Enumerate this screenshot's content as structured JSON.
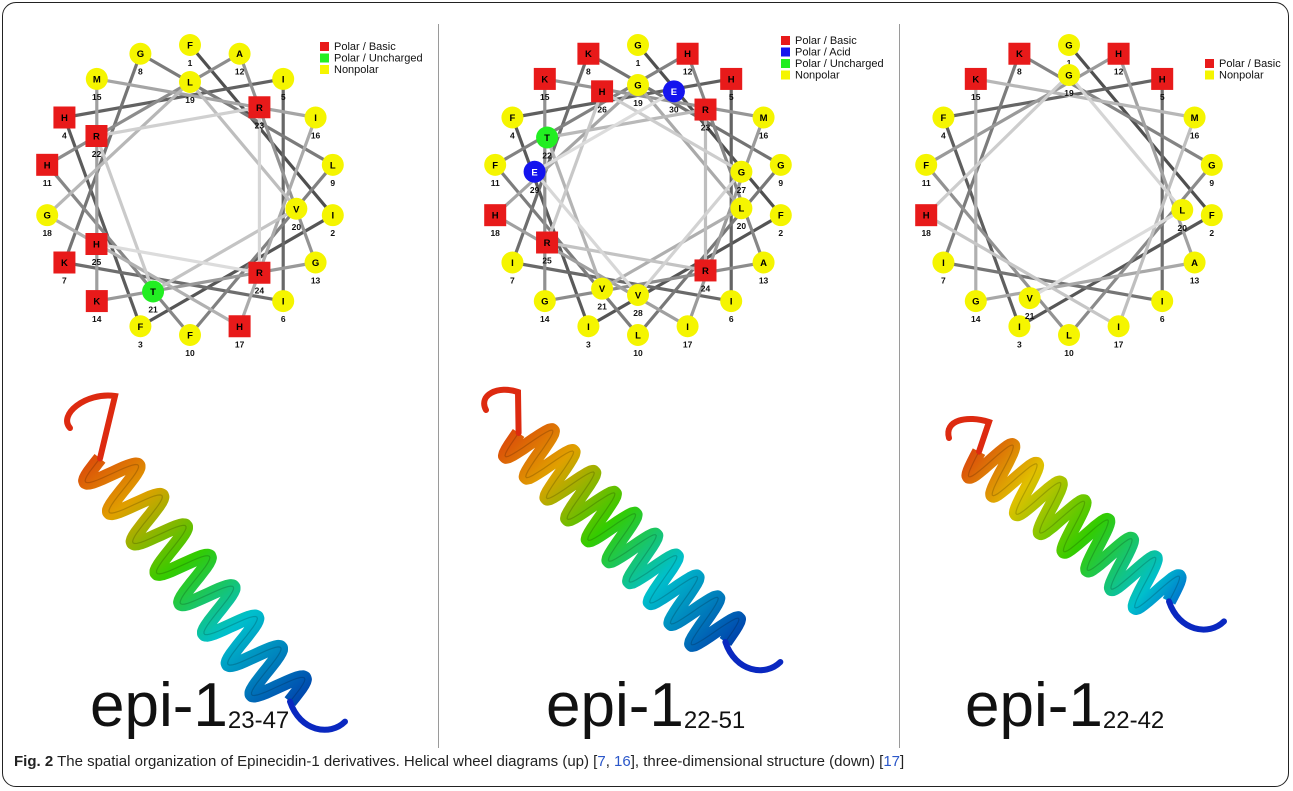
{
  "legend_labels": {
    "basic": "Polar / Basic",
    "acid": "Polar / Acid",
    "uncharged": "Polar / Uncharged",
    "nonpolar": "Nonpolar"
  },
  "colors": {
    "basic": "#e81a1a",
    "acid": "#1414ee",
    "uncharged": "#22ee22",
    "nonpolar": "#f5f500"
  },
  "panels": [
    {
      "id": "epi-1-23-47",
      "label_main": "epi-1",
      "label_sub": "23-47",
      "legend": [
        "basic",
        "uncharged",
        "nonpolar"
      ],
      "residues": [
        {
          "n": 1,
          "aa": "F",
          "type": "nonpolar"
        },
        {
          "n": 2,
          "aa": "I",
          "type": "nonpolar"
        },
        {
          "n": 3,
          "aa": "F",
          "type": "nonpolar"
        },
        {
          "n": 4,
          "aa": "H",
          "type": "basic"
        },
        {
          "n": 5,
          "aa": "I",
          "type": "nonpolar"
        },
        {
          "n": 6,
          "aa": "I",
          "type": "nonpolar"
        },
        {
          "n": 7,
          "aa": "K",
          "type": "basic"
        },
        {
          "n": 8,
          "aa": "G",
          "type": "nonpolar"
        },
        {
          "n": 9,
          "aa": "L",
          "type": "nonpolar"
        },
        {
          "n": 10,
          "aa": "F",
          "type": "nonpolar"
        },
        {
          "n": 11,
          "aa": "H",
          "type": "basic"
        },
        {
          "n": 12,
          "aa": "A",
          "type": "nonpolar"
        },
        {
          "n": 13,
          "aa": "G",
          "type": "nonpolar"
        },
        {
          "n": 14,
          "aa": "K",
          "type": "basic"
        },
        {
          "n": 15,
          "aa": "M",
          "type": "nonpolar"
        },
        {
          "n": 16,
          "aa": "I",
          "type": "nonpolar"
        },
        {
          "n": 17,
          "aa": "H",
          "type": "basic"
        },
        {
          "n": 18,
          "aa": "G",
          "type": "nonpolar"
        },
        {
          "n": 19,
          "aa": "L",
          "type": "nonpolar"
        },
        {
          "n": 20,
          "aa": "V",
          "type": "nonpolar"
        },
        {
          "n": 21,
          "aa": "T",
          "type": "uncharged"
        },
        {
          "n": 22,
          "aa": "R",
          "type": "basic"
        },
        {
          "n": 23,
          "aa": "R",
          "type": "basic"
        },
        {
          "n": 24,
          "aa": "R",
          "type": "basic"
        },
        {
          "n": 25,
          "aa": "H",
          "type": "basic"
        }
      ]
    },
    {
      "id": "epi-1-22-51",
      "label_main": "epi-1",
      "label_sub": "22-51",
      "legend": [
        "basic",
        "acid",
        "uncharged",
        "nonpolar"
      ],
      "residues": [
        {
          "n": 1,
          "aa": "G",
          "type": "nonpolar"
        },
        {
          "n": 2,
          "aa": "F",
          "type": "nonpolar"
        },
        {
          "n": 3,
          "aa": "I",
          "type": "nonpolar"
        },
        {
          "n": 4,
          "aa": "F",
          "type": "nonpolar"
        },
        {
          "n": 5,
          "aa": "H",
          "type": "basic"
        },
        {
          "n": 6,
          "aa": "I",
          "type": "nonpolar"
        },
        {
          "n": 7,
          "aa": "I",
          "type": "nonpolar"
        },
        {
          "n": 8,
          "aa": "K",
          "type": "basic"
        },
        {
          "n": 9,
          "aa": "G",
          "type": "nonpolar"
        },
        {
          "n": 10,
          "aa": "L",
          "type": "nonpolar"
        },
        {
          "n": 11,
          "aa": "F",
          "type": "nonpolar"
        },
        {
          "n": 12,
          "aa": "H",
          "type": "basic"
        },
        {
          "n": 13,
          "aa": "A",
          "type": "nonpolar"
        },
        {
          "n": 14,
          "aa": "G",
          "type": "nonpolar"
        },
        {
          "n": 15,
          "aa": "K",
          "type": "basic"
        },
        {
          "n": 16,
          "aa": "M",
          "type": "nonpolar"
        },
        {
          "n": 17,
          "aa": "I",
          "type": "nonpolar"
        },
        {
          "n": 18,
          "aa": "H",
          "type": "basic"
        },
        {
          "n": 19,
          "aa": "G",
          "type": "nonpolar"
        },
        {
          "n": 20,
          "aa": "L",
          "type": "nonpolar"
        },
        {
          "n": 21,
          "aa": "V",
          "type": "nonpolar"
        },
        {
          "n": 22,
          "aa": "T",
          "type": "uncharged"
        },
        {
          "n": 23,
          "aa": "R",
          "type": "basic"
        },
        {
          "n": 24,
          "aa": "R",
          "type": "basic"
        },
        {
          "n": 25,
          "aa": "R",
          "type": "basic"
        },
        {
          "n": 26,
          "aa": "H",
          "type": "basic"
        },
        {
          "n": 27,
          "aa": "G",
          "type": "nonpolar"
        },
        {
          "n": 28,
          "aa": "V",
          "type": "nonpolar"
        },
        {
          "n": 29,
          "aa": "E",
          "type": "acid"
        },
        {
          "n": 30,
          "aa": "E",
          "type": "acid"
        }
      ]
    },
    {
      "id": "epi-1-22-42",
      "label_main": "epi-1",
      "label_sub": "22-42",
      "legend": [
        "basic",
        "nonpolar"
      ],
      "residues": [
        {
          "n": 1,
          "aa": "G",
          "type": "nonpolar"
        },
        {
          "n": 2,
          "aa": "F",
          "type": "nonpolar"
        },
        {
          "n": 3,
          "aa": "I",
          "type": "nonpolar"
        },
        {
          "n": 4,
          "aa": "F",
          "type": "nonpolar"
        },
        {
          "n": 5,
          "aa": "H",
          "type": "basic"
        },
        {
          "n": 6,
          "aa": "I",
          "type": "nonpolar"
        },
        {
          "n": 7,
          "aa": "I",
          "type": "nonpolar"
        },
        {
          "n": 8,
          "aa": "K",
          "type": "basic"
        },
        {
          "n": 9,
          "aa": "G",
          "type": "nonpolar"
        },
        {
          "n": 10,
          "aa": "L",
          "type": "nonpolar"
        },
        {
          "n": 11,
          "aa": "F",
          "type": "nonpolar"
        },
        {
          "n": 12,
          "aa": "H",
          "type": "basic"
        },
        {
          "n": 13,
          "aa": "A",
          "type": "nonpolar"
        },
        {
          "n": 14,
          "aa": "G",
          "type": "nonpolar"
        },
        {
          "n": 15,
          "aa": "K",
          "type": "basic"
        },
        {
          "n": 16,
          "aa": "M",
          "type": "nonpolar"
        },
        {
          "n": 17,
          "aa": "I",
          "type": "nonpolar"
        },
        {
          "n": 18,
          "aa": "H",
          "type": "basic"
        },
        {
          "n": 19,
          "aa": "G",
          "type": "nonpolar"
        },
        {
          "n": 20,
          "aa": "L",
          "type": "nonpolar"
        },
        {
          "n": 21,
          "aa": "V",
          "type": "nonpolar"
        }
      ]
    }
  ],
  "caption": {
    "fig": "Fig. 2",
    "text1": " The spatial organization of Epinecidin-1 derivatives. Helical wheel diagrams (up) [",
    "ref1": "7",
    "sep": ", ",
    "ref2": "16",
    "text2": "], three-dimensional structure (down) [",
    "ref3": "17",
    "text3": "]"
  }
}
